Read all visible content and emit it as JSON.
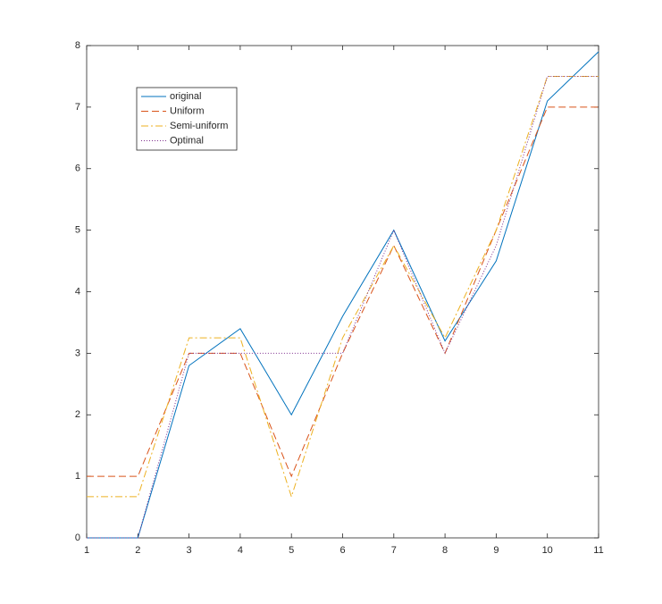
{
  "chart_data": {
    "type": "line",
    "x": [
      1,
      2,
      3,
      4,
      5,
      6,
      7,
      8,
      9,
      10,
      11
    ],
    "series": [
      {
        "name": "original",
        "color": "#0072bd",
        "linestyle": "-",
        "values": [
          0,
          0,
          2.8,
          3.4,
          2.0,
          3.6,
          5.0,
          3.2,
          4.5,
          7.1,
          7.9
        ]
      },
      {
        "name": "Uniform",
        "color": "#d95319",
        "linestyle": "--",
        "values": [
          1,
          1,
          3,
          3,
          1,
          3,
          4.75,
          3,
          5,
          7,
          7
        ]
      },
      {
        "name": "Semi-uniform",
        "color": "#edb120",
        "linestyle": "-.",
        "values": [
          0.67,
          0.67,
          3.25,
          3.25,
          0.67,
          3.25,
          4.75,
          3.25,
          5,
          7.5,
          7.5
        ]
      },
      {
        "name": "Optimal",
        "color": "#7e2f8e",
        "linestyle": ":",
        "values": [
          0,
          0,
          3,
          3,
          3,
          3,
          5.0,
          3,
          4.75,
          7.5,
          7.5
        ]
      }
    ],
    "xlim": [
      1,
      11
    ],
    "xticks": [
      1,
      2,
      3,
      4,
      5,
      6,
      7,
      8,
      9,
      10,
      11
    ],
    "ylim": [
      0,
      8
    ],
    "yticks": [
      0,
      1,
      2,
      3,
      4,
      5,
      6,
      7,
      8
    ],
    "legend": "upper-left"
  }
}
